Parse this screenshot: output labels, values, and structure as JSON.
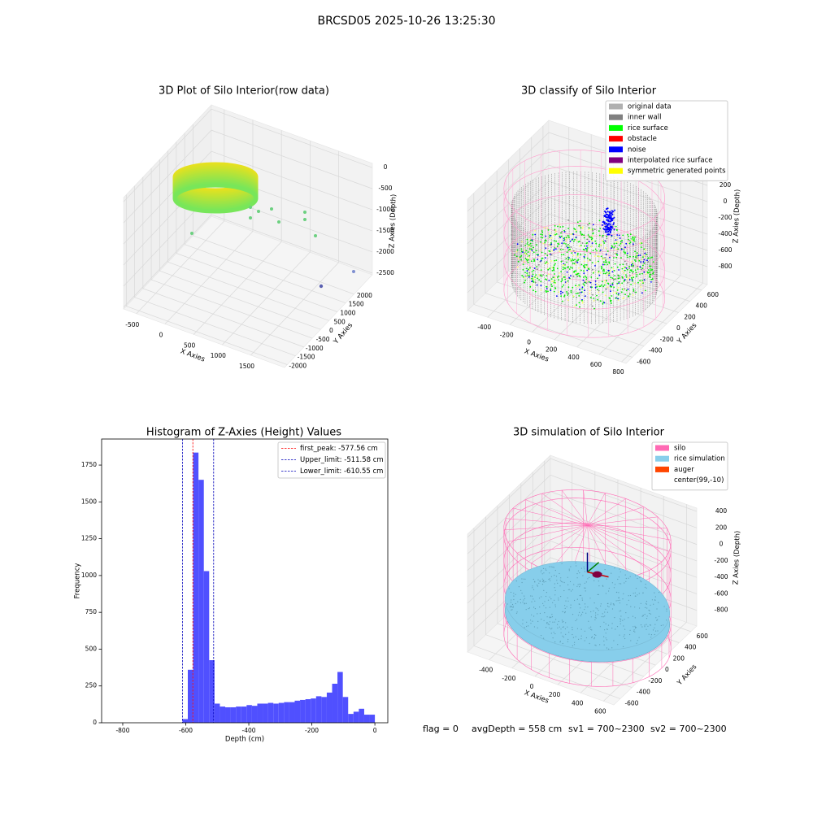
{
  "title": "BRCSD05 2025-10-26 13:25:30",
  "chart_data": [
    {
      "type": "scatter3d",
      "title": "3D Plot of Silo Interior(row data)",
      "xlabel": "X Axies",
      "ylabel": "Y Axies",
      "zlabel": "Z Axies (Depth)",
      "xlim": [
        -725,
        2090
      ],
      "ylim": [
        -2160,
        3100
      ],
      "zlim": [
        -2540,
        100
      ],
      "xticks": [
        -500,
        0,
        500,
        1000,
        1500
      ],
      "yticks": [
        -2000,
        -1500,
        -1000,
        -500,
        0,
        500,
        1000,
        1500,
        2000
      ],
      "zticks": [
        0,
        -500,
        -1000,
        -1500,
        -2000,
        -2500
      ],
      "grid": true
    },
    {
      "type": "scatter3d",
      "title": "3D classify of Silo Interior",
      "xlabel": "X Axies",
      "ylabel": "Y Axies",
      "zlabel": "Z Axies (Depth)",
      "xlim": [
        -580,
        840
      ],
      "ylim": [
        -710,
        700
      ],
      "zlim": [
        -1020,
        350
      ],
      "xticks": [
        -400,
        -200,
        0,
        200,
        400,
        600,
        800
      ],
      "yticks": [
        -600,
        -400,
        -200,
        0,
        200,
        400,
        600
      ],
      "zticks": [
        200,
        0,
        -200,
        -400,
        -600,
        -800
      ],
      "grid": true,
      "legend": "upper right",
      "series": [
        {
          "name": "original data",
          "color": "#b0b0b0"
        },
        {
          "name": "inner wall",
          "color": "#808080"
        },
        {
          "name": "rice surface",
          "color": "#00ff00"
        },
        {
          "name": "obstacle",
          "color": "#ff0000"
        },
        {
          "name": "noise",
          "color": "#0000ff"
        },
        {
          "name": "interpolated rice surface",
          "color": "#800080"
        },
        {
          "name": "symmetric generated points",
          "color": "#ffff00"
        }
      ]
    },
    {
      "type": "histogram",
      "title": "Histogram of Z-Axies (Height) Values",
      "xlabel": "Depth (cm)",
      "ylabel": "Frequency",
      "color": "#5050ff",
      "xlim": [
        -867,
        41
      ],
      "ylim": [
        0,
        1927
      ],
      "xticks": [
        -800,
        -600,
        -400,
        -200,
        0
      ],
      "yticks": [
        0,
        250,
        500,
        750,
        1000,
        1250,
        1500,
        1750
      ],
      "legend": "upper right",
      "bins": [
        -610.55,
        -593.59,
        -576.63,
        -559.67,
        -542.71,
        -525.75,
        -508.79,
        -491.83,
        -474.87,
        -457.91,
        -440.95,
        -423.99,
        -407.03,
        -390.07,
        -373.11,
        -356.15,
        -339.19,
        -322.23,
        -305.27,
        -288.31,
        -271.35,
        -254.39,
        -237.43,
        -220.47,
        -203.51,
        -186.55,
        -169.59,
        -152.63,
        -135.67,
        -118.71,
        -101.75,
        -84.79,
        -67.83,
        -50.87,
        -33.91,
        -16.95,
        0
      ],
      "values": [
        25,
        360,
        1835,
        1650,
        1030,
        425,
        130,
        110,
        105,
        105,
        110,
        110,
        120,
        115,
        130,
        130,
        135,
        130,
        135,
        140,
        140,
        150,
        155,
        160,
        165,
        180,
        175,
        205,
        265,
        345,
        175,
        60,
        75,
        95,
        55,
        55
      ],
      "vlines": [
        {
          "name": "first_peak: -577.56 cm",
          "value": -577.56,
          "color": "#ff0000"
        },
        {
          "name": "Upper_limit: -511.58 cm",
          "value": -511.58,
          "color": "#0000bb"
        },
        {
          "name": "Lower_limit: -610.55 cm",
          "value": -610.55,
          "color": "#0000bb"
        }
      ]
    },
    {
      "type": "scatter3d",
      "title": "3D simulation of Silo Interior",
      "xlabel": "X Axies",
      "ylabel": "Y Axies",
      "zlabel": "Z Axies (Depth)",
      "xlim": [
        -590,
        690
      ],
      "ylim": [
        -710,
        700
      ],
      "zlim": [
        -990,
        440
      ],
      "xticks": [
        -400,
        -200,
        0,
        200,
        400,
        600
      ],
      "yticks": [
        -600,
        -400,
        -200,
        0,
        200,
        400,
        600
      ],
      "zticks": [
        400,
        200,
        0,
        -200,
        -400,
        -600,
        -800
      ],
      "grid": true,
      "legend": "upper right",
      "series": [
        {
          "name": "silo",
          "color": "#ff69b4"
        },
        {
          "name": "rice simulation",
          "color": "#87ceeb"
        },
        {
          "name": "auger",
          "color": "#ff4500"
        },
        {
          "name": "center(99,-10)",
          "color": "#ffffff"
        }
      ]
    }
  ],
  "footer": [
    "flag = 0",
    "avgDepth = 558 cm",
    "sv1 = 700~2300",
    "sv2 = 700~2300"
  ]
}
